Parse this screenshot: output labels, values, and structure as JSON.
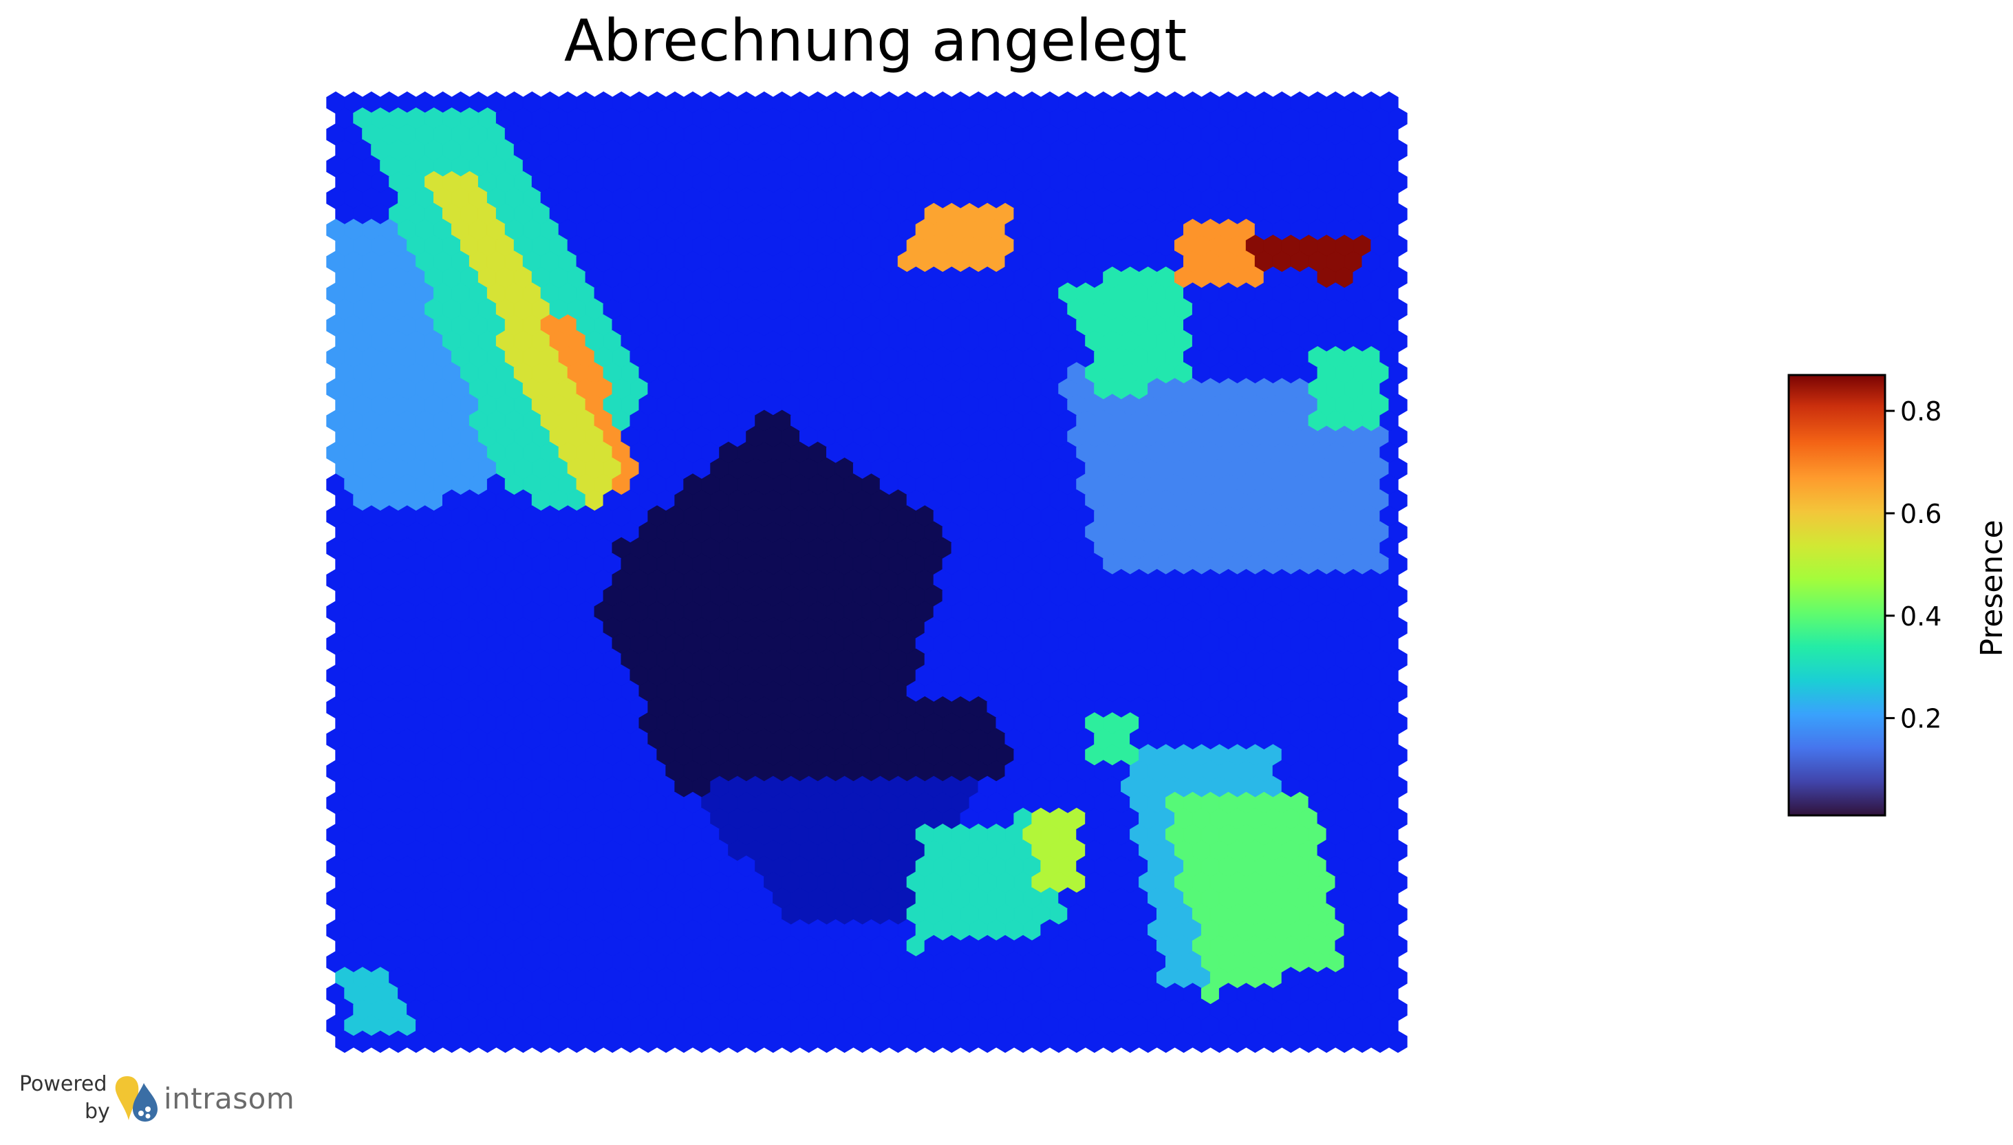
{
  "chart_data": {
    "type": "heatmap",
    "title": "Abrechnung angelegt",
    "colorbar": {
      "label": "Presence",
      "ticks": [
        "0.2",
        "0.4",
        "0.6",
        "0.8"
      ],
      "tick_values": [
        0.2,
        0.4,
        0.6,
        0.8
      ],
      "range": [
        0.01,
        0.87
      ],
      "colormap": "turbo"
    },
    "grid": {
      "cols": 60,
      "rows": 60,
      "cell_shape": "hexagon",
      "base_value": 0.08
    },
    "regions": [
      {
        "id": "diagonal-band-outer",
        "value": 0.28,
        "polygon": [
          [
            0.02,
            0.01
          ],
          [
            0.14,
            0.01
          ],
          [
            0.3,
            0.3
          ],
          [
            0.24,
            0.43
          ],
          [
            0.16,
            0.42
          ]
        ]
      },
      {
        "id": "diagonal-band-inner",
        "value": 0.5,
        "polygon": [
          [
            0.08,
            0.08
          ],
          [
            0.14,
            0.08
          ],
          [
            0.29,
            0.39
          ],
          [
            0.24,
            0.43
          ]
        ]
      },
      {
        "id": "diagonal-band-core",
        "value": 0.62,
        "polygon": [
          [
            0.19,
            0.23
          ],
          [
            0.22,
            0.23
          ],
          [
            0.29,
            0.39
          ],
          [
            0.27,
            0.41
          ]
        ]
      },
      {
        "id": "left-light-wedge",
        "value": 0.18,
        "polygon": [
          [
            0.0,
            0.13
          ],
          [
            0.1,
            0.11
          ],
          [
            0.15,
            0.42
          ],
          [
            0.03,
            0.43
          ],
          [
            0.0,
            0.4
          ]
        ]
      },
      {
        "id": "dark-pentagon",
        "value": 0.01,
        "polygon": [
          [
            0.41,
            0.33
          ],
          [
            0.58,
            0.46
          ],
          [
            0.54,
            0.63
          ],
          [
            0.62,
            0.64
          ],
          [
            0.64,
            0.72
          ],
          [
            0.32,
            0.73
          ],
          [
            0.25,
            0.55
          ],
          [
            0.27,
            0.47
          ]
        ]
      },
      {
        "id": "lower-dark-patch",
        "value": 0.05,
        "polygon": [
          [
            0.32,
            0.72
          ],
          [
            0.6,
            0.72
          ],
          [
            0.58,
            0.88
          ],
          [
            0.44,
            0.88
          ]
        ]
      },
      {
        "id": "top-mid-blob",
        "value": 0.6,
        "polygon": [
          [
            0.55,
            0.11
          ],
          [
            0.63,
            0.11
          ],
          [
            0.64,
            0.18
          ],
          [
            0.53,
            0.18
          ]
        ]
      },
      {
        "id": "top-right-hot",
        "value": 0.85,
        "polygon": [
          [
            0.86,
            0.14
          ],
          [
            0.97,
            0.15
          ],
          [
            0.96,
            0.19
          ],
          [
            0.86,
            0.18
          ]
        ]
      },
      {
        "id": "top-right-warm",
        "value": 0.62,
        "polygon": [
          [
            0.79,
            0.13
          ],
          [
            0.87,
            0.13
          ],
          [
            0.87,
            0.19
          ],
          [
            0.79,
            0.19
          ]
        ]
      },
      {
        "id": "top-right-cyan",
        "value": 0.3,
        "polygon": [
          [
            0.68,
            0.19
          ],
          [
            0.8,
            0.18
          ],
          [
            0.8,
            0.3
          ],
          [
            0.72,
            0.31
          ]
        ]
      },
      {
        "id": "right-cyan-patch",
        "value": 0.3,
        "polygon": [
          [
            0.92,
            0.27
          ],
          [
            0.99,
            0.27
          ],
          [
            0.99,
            0.34
          ],
          [
            0.92,
            0.34
          ]
        ]
      },
      {
        "id": "bottom-right-patch",
        "value": 0.36,
        "polygon": [
          [
            0.78,
            0.74
          ],
          [
            0.92,
            0.74
          ],
          [
            0.95,
            0.92
          ],
          [
            0.82,
            0.95
          ]
        ]
      },
      {
        "id": "bottom-right-light",
        "value": 0.22,
        "polygon": [
          [
            0.74,
            0.68
          ],
          [
            0.88,
            0.68
          ],
          [
            0.95,
            0.9
          ],
          [
            0.78,
            0.95
          ]
        ]
      },
      {
        "id": "bottom-mid-patch",
        "value": 0.28,
        "polygon": [
          [
            0.55,
            0.78
          ],
          [
            0.69,
            0.75
          ],
          [
            0.68,
            0.88
          ],
          [
            0.54,
            0.9
          ]
        ]
      },
      {
        "id": "bottom-small-green",
        "value": 0.45,
        "polygon": [
          [
            0.65,
            0.75
          ],
          [
            0.7,
            0.75
          ],
          [
            0.7,
            0.84
          ],
          [
            0.66,
            0.84
          ]
        ]
      },
      {
        "id": "mid-cyan-dot",
        "value": 0.32,
        "polygon": [
          [
            0.71,
            0.66
          ],
          [
            0.75,
            0.66
          ],
          [
            0.75,
            0.7
          ],
          [
            0.71,
            0.7
          ]
        ]
      },
      {
        "id": "bottom-left-corner",
        "value": 0.24,
        "polygon": [
          [
            0.0,
            0.92
          ],
          [
            0.05,
            0.92
          ],
          [
            0.08,
            1.0
          ],
          [
            0.02,
            1.0
          ]
        ]
      },
      {
        "id": "right-mid-light",
        "value": 0.15,
        "polygon": [
          [
            0.68,
            0.28
          ],
          [
            0.99,
            0.3
          ],
          [
            0.99,
            0.5
          ],
          [
            0.72,
            0.5
          ]
        ]
      }
    ]
  },
  "branding": {
    "powered": "Powered",
    "by": "by",
    "name": "intrasom"
  },
  "colors": {
    "logo_yellow": "#f2c532",
    "logo_blue": "#3a6ea5"
  }
}
